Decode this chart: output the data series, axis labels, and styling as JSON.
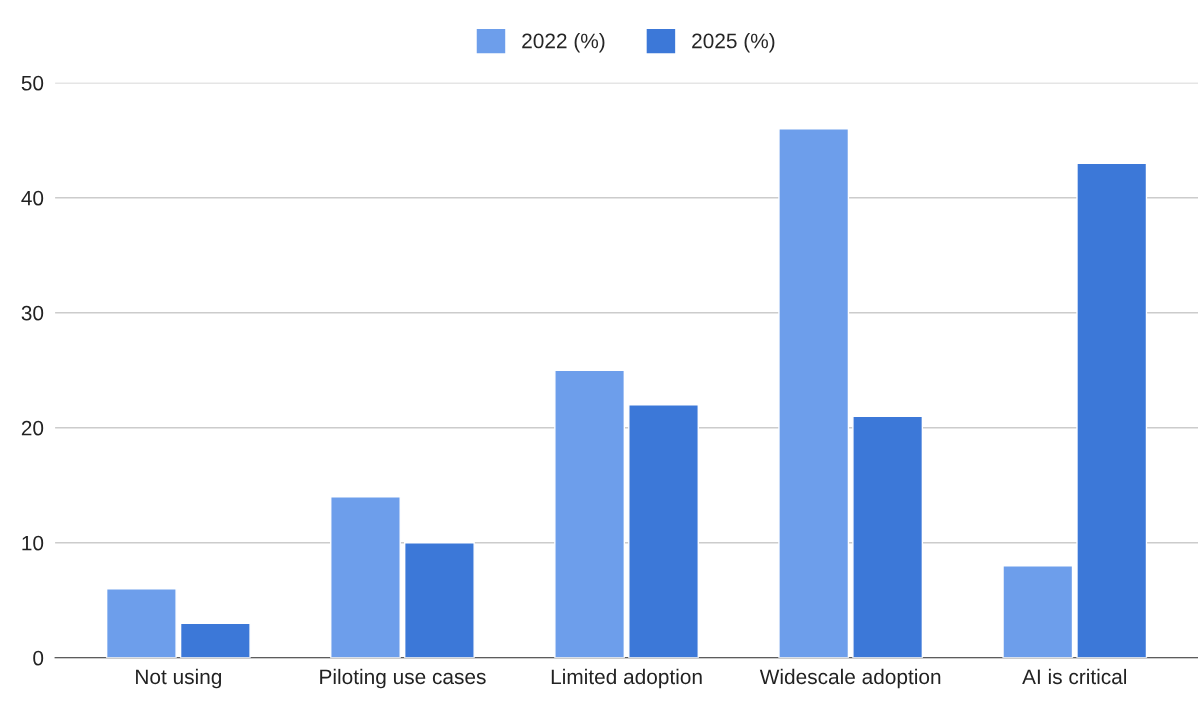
{
  "chart_data": {
    "type": "bar",
    "categories": [
      "Not using",
      "Piloting use cases",
      "Limited adoption",
      "Widescale adoption",
      "AI is critical"
    ],
    "series": [
      {
        "name": "2022 (%)",
        "color": "#6d9eeb",
        "values": [
          6,
          14,
          25,
          46,
          8
        ]
      },
      {
        "name": "2025 (%)",
        "color": "#3c78d8",
        "values": [
          3,
          10,
          22,
          21,
          43
        ]
      }
    ],
    "ylim": [
      0,
      50
    ],
    "yticks": [
      0,
      10,
      20,
      30,
      40,
      50
    ],
    "grid": "y",
    "legend": "top"
  }
}
